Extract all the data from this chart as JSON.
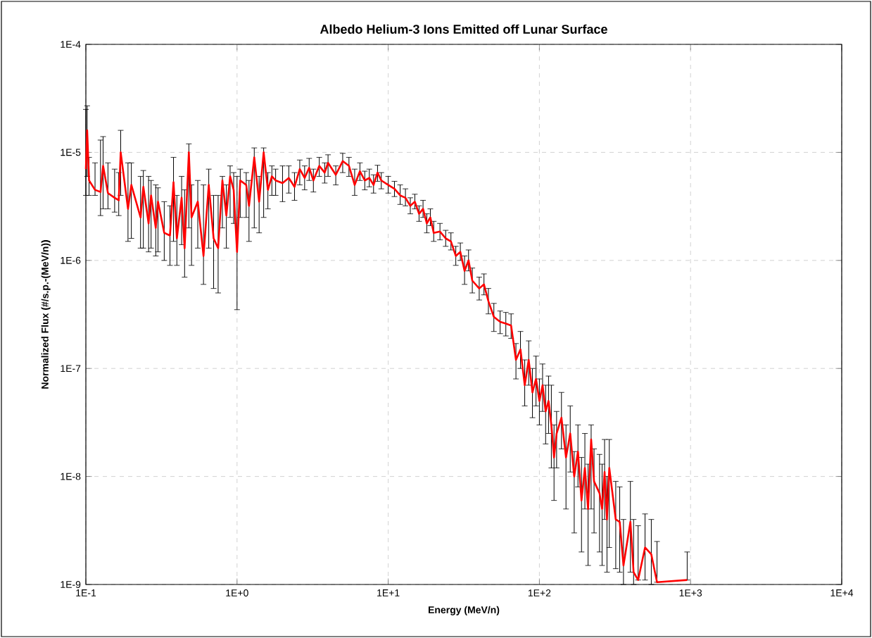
{
  "chart_data": {
    "type": "line",
    "title": "Albedo Helium-3 Ions Emitted off Lunar Surface",
    "xlabel": "Energy (MeV/n)",
    "ylabel": "Normalized Flux (#/s.p.-(MeV/n))",
    "log": "xy",
    "grid": true,
    "marker": "none",
    "line_style": "solid",
    "xlim": [
      0.1,
      10000
    ],
    "ylim": [
      1e-09,
      0.0001
    ],
    "xticks": [
      {
        "value": 0.1,
        "label": "1E-1"
      },
      {
        "value": 1,
        "label": "1E+0"
      },
      {
        "value": 10,
        "label": "1E+1"
      },
      {
        "value": 100,
        "label": "1E+2"
      },
      {
        "value": 1000,
        "label": "1E+3"
      },
      {
        "value": 10000,
        "label": "1E+4"
      }
    ],
    "yticks": [
      {
        "value": 1e-09,
        "label": "1E-9"
      },
      {
        "value": 1e-08,
        "label": "1E-8"
      },
      {
        "value": 1e-07,
        "label": "1E-7"
      },
      {
        "value": 1e-06,
        "label": "1E-6"
      },
      {
        "value": 1e-05,
        "label": "1E-5"
      },
      {
        "value": 0.0001,
        "label": "1E-4"
      }
    ],
    "x": [
      0.1,
      0.102,
      0.105,
      0.115,
      0.125,
      0.13,
      0.14,
      0.155,
      0.165,
      0.17,
      0.19,
      0.2,
      0.23,
      0.24,
      0.26,
      0.27,
      0.29,
      0.3,
      0.33,
      0.36,
      0.38,
      0.4,
      0.43,
      0.45,
      0.48,
      0.5,
      0.55,
      0.6,
      0.65,
      0.7,
      0.75,
      0.8,
      0.85,
      0.9,
      0.95,
      1.0,
      1.05,
      1.15,
      1.2,
      1.3,
      1.4,
      1.5,
      1.6,
      1.7,
      1.8,
      2.0,
      2.2,
      2.4,
      2.6,
      2.8,
      3.0,
      3.2,
      3.5,
      3.8,
      4.0,
      4.5,
      5.0,
      5.5,
      6.0,
      6.5,
      7.0,
      7.5,
      8.0,
      8.5,
      9.0,
      10,
      11,
      12,
      13,
      14,
      15,
      16,
      17,
      18,
      19,
      20,
      22,
      24,
      26,
      28,
      30,
      32,
      34,
      36,
      40,
      43,
      46,
      50,
      55,
      60,
      65,
      70,
      75,
      80,
      85,
      90,
      95,
      100,
      105,
      110,
      115,
      120,
      125,
      130,
      140,
      150,
      160,
      170,
      180,
      190,
      200,
      210,
      220,
      230,
      250,
      260,
      270,
      280,
      290,
      320,
      340,
      360,
      400,
      420,
      450,
      500,
      550,
      600,
      950
    ],
    "series": [
      {
        "color": "#ff0000",
        "values": [
          7e-06,
          1.6e-05,
          5.5e-06,
          4.5e-06,
          4.3e-06,
          7.5e-06,
          4.2e-06,
          3.8e-06,
          3.6e-06,
          1e-05,
          3e-06,
          5e-06,
          2.5e-06,
          4.8e-06,
          2.2e-06,
          4e-06,
          2e-06,
          3.5e-06,
          1.8e-06,
          1.7e-06,
          5.3e-06,
          1.6e-06,
          3.8e-06,
          1.3e-06,
          1e-05,
          2.5e-06,
          3.5e-06,
          1.1e-06,
          5e-06,
          1.6e-06,
          1.3e-06,
          5.5e-06,
          2.6e-06,
          6e-06,
          4.5e-06,
          1.2e-06,
          5.5e-06,
          5e-06,
          3.2e-06,
          9e-06,
          3.5e-06,
          1e-05,
          4.5e-06,
          6e-06,
          5.5e-06,
          5.2e-06,
          5.8e-06,
          4.8e-06,
          7e-06,
          5.8e-06,
          7.2e-06,
          5.5e-06,
          7.5e-06,
          6.5e-06,
          8e-06,
          6.2e-06,
          8.3e-06,
          7.5e-06,
          5e-06,
          6.7e-06,
          5.5e-06,
          5.8e-06,
          5e-06,
          6.5e-06,
          5.5e-06,
          5e-06,
          4.6e-06,
          4e-06,
          3.8e-06,
          3.2e-06,
          3.5e-06,
          2.7e-06,
          3e-06,
          2.2e-06,
          2.5e-06,
          1.8e-06,
          1.85e-06,
          1.6e-06,
          1.5e-06,
          1.1e-06,
          1.2e-06,
          8e-07,
          1e-06,
          6.5e-07,
          5.5e-07,
          6e-07,
          4.2e-07,
          3e-07,
          2.7e-07,
          2.6e-07,
          2.5e-07,
          1.2e-07,
          1.5e-07,
          7e-08,
          1.2e-07,
          6e-08,
          8e-08,
          5e-08,
          7e-08,
          4e-08,
          5e-08,
          3e-08,
          1.5e-08,
          2.5e-08,
          3.5e-08,
          1.5e-08,
          2.5e-08,
          1e-08,
          1.7e-08,
          6e-09,
          1.2e-08,
          5e-09,
          2.2e-08,
          9e-09,
          7e-09,
          5e-09,
          1.1e-08,
          4e-09,
          1.2e-08,
          4e-09,
          3.8e-09,
          1.5e-09,
          3.8e-09,
          1.3e-09,
          1.1e-09,
          2.2e-09,
          1.9e-09,
          1.05e-09,
          1.1e-09
        ],
        "errors": [
          [
            4e-06,
            2.5e-05
          ],
          [
            6e-06,
            2.7e-05
          ],
          [
            4e-06,
            9e-06
          ],
          [
            4e-06,
            8e-06
          ],
          [
            2.6e-06,
            1.3e-05
          ],
          [
            3e-06,
            1.4e-05
          ],
          [
            3e-06,
            8e-06
          ],
          [
            2.8e-06,
            7e-06
          ],
          [
            2.6e-06,
            6.5e-06
          ],
          [
            4e-06,
            1.6e-05
          ],
          [
            1.5e-06,
            8e-06
          ],
          [
            1.6e-06,
            8e-06
          ],
          [
            1.3e-06,
            6e-06
          ],
          [
            1.3e-06,
            6.8e-06
          ],
          [
            1.2e-06,
            6e-06
          ],
          [
            1.3e-06,
            5.5e-06
          ],
          [
            1.1e-06,
            5e-06
          ],
          [
            1.2e-06,
            4.7e-06
          ],
          [
            1e-06,
            3.5e-06
          ],
          [
            9e-07,
            3.2e-06
          ],
          [
            1.5e-06,
            9e-06
          ],
          [
            9e-07,
            4e-06
          ],
          [
            1.4e-06,
            6e-06
          ],
          [
            7e-07,
            4.5e-06
          ],
          [
            2e-06,
            1.2e-05
          ],
          [
            9e-07,
            5e-06
          ],
          [
            1.3e-06,
            5.5e-06
          ],
          [
            6e-07,
            5e-06
          ],
          [
            1.3e-06,
            7e-06
          ],
          [
            5.5e-07,
            4e-06
          ],
          [
            5e-07,
            4e-06
          ],
          [
            2e-06,
            6e-06
          ],
          [
            1.3e-06,
            5e-06
          ],
          [
            2.5e-06,
            7.5e-06
          ],
          [
            2.2e-06,
            6.5e-06
          ],
          [
            3.5e-07,
            6e-06
          ],
          [
            2.5e-06,
            7e-06
          ],
          [
            2.5e-06,
            6.5e-06
          ],
          [
            1.5e-06,
            5.5e-06
          ],
          [
            2e-06,
            1.1e-05
          ],
          [
            1.8e-06,
            6e-06
          ],
          [
            2.5e-06,
            1.1e-05
          ],
          [
            3e-06,
            6.5e-06
          ],
          [
            4e-06,
            7.5e-06
          ],
          [
            4e-06,
            7e-06
          ],
          [
            3.5e-06,
            7.5e-06
          ],
          [
            4.2e-06,
            7.5e-06
          ],
          [
            3.6e-06,
            6.5e-06
          ],
          [
            5e-06,
            8.5e-06
          ],
          [
            4.5e-06,
            7.5e-06
          ],
          [
            5.5e-06,
            8.8e-06
          ],
          [
            4.3e-06,
            7e-06
          ],
          [
            6e-06,
            9e-06
          ],
          [
            5.2e-06,
            8e-06
          ],
          [
            6e-06,
            9.5e-06
          ],
          [
            5e-06,
            7.5e-06
          ],
          [
            6.5e-06,
            9.8e-06
          ],
          [
            6e-06,
            9e-06
          ],
          [
            4e-06,
            7e-06
          ],
          [
            5.5e-06,
            8e-06
          ],
          [
            4.5e-06,
            6.7e-06
          ],
          [
            4.8e-06,
            7e-06
          ],
          [
            4.2e-06,
            6.2e-06
          ],
          [
            5.4e-06,
            7.6e-06
          ],
          [
            4.6e-06,
            6.5e-06
          ],
          [
            4.2e-06,
            6e-06
          ],
          [
            3.9e-06,
            5.4e-06
          ],
          [
            3.3e-06,
            5e-06
          ],
          [
            3.2e-06,
            4.6e-06
          ],
          [
            2.7e-06,
            3.8e-06
          ],
          [
            3e-06,
            4.1e-06
          ],
          [
            2.3e-06,
            3.2e-06
          ],
          [
            2.5e-06,
            3.6e-06
          ],
          [
            1.8e-06,
            2.7e-06
          ],
          [
            2.1e-06,
            3e-06
          ],
          [
            1.5e-06,
            2.3e-06
          ],
          [
            1.55e-06,
            2.2e-06
          ],
          [
            1.35e-06,
            1.9e-06
          ],
          [
            1.25e-06,
            1.8e-06
          ],
          [
            9e-07,
            1.35e-06
          ],
          [
            1e-06,
            1.45e-06
          ],
          [
            6e-07,
            1.1e-06
          ],
          [
            8e-07,
            1.25e-06
          ],
          [
            5e-07,
            8.5e-07
          ],
          [
            4.3e-07,
            7e-07
          ],
          [
            4.8e-07,
            7.5e-07
          ],
          [
            3.2e-07,
            5.5e-07
          ],
          [
            2.2e-07,
            4e-07
          ],
          [
            2.1e-07,
            3.4e-07
          ],
          [
            2e-07,
            3.3e-07
          ],
          [
            1.9e-07,
            3.2e-07
          ],
          [
            8e-08,
            1.7e-07
          ],
          [
            1e-07,
            2.2e-07
          ],
          [
            4.5e-08,
            1.2e-07
          ],
          [
            7e-08,
            1.8e-07
          ],
          [
            3.5e-08,
            1e-07
          ],
          [
            4.5e-08,
            1.3e-07
          ],
          [
            3e-08,
            8e-08
          ],
          [
            4e-08,
            1.1e-07
          ],
          [
            2e-08,
            7e-08
          ],
          [
            2.5e-08,
            8.5e-08
          ],
          [
            1.2e-08,
            7e-08
          ],
          [
            6e-09,
            3e-08
          ],
          [
            1.2e-08,
            4e-08
          ],
          [
            1.8e-08,
            6e-08
          ],
          [
            5e-09,
            3e-08
          ],
          [
            1.1e-08,
            4.5e-08
          ],
          [
            3e-09,
            1.7e-08
          ],
          [
            8e-09,
            3e-08
          ],
          [
            2e-09,
            1.5e-08
          ],
          [
            5e-09,
            2.5e-08
          ],
          [
            1.5e-09,
            1.3e-08
          ],
          [
            5e-09,
            3e-08
          ],
          [
            3e-09,
            1.8e-08
          ],
          [
            2e-09,
            1.6e-08
          ],
          [
            1.5e-09,
            1.3e-08
          ],
          [
            4e-09,
            2.2e-08
          ],
          [
            1.3e-09,
            1e-08
          ],
          [
            2.2e-09,
            2.2e-08
          ],
          [
            1.4e-09,
            9e-09
          ],
          [
            1.3e-09,
            8e-09
          ],
          [
            1e-09,
            4e-09
          ],
          [
            1.3e-09,
            9e-09
          ],
          [
            1e-09,
            4e-09
          ],
          [
            1.1e-09,
            3.5e-09
          ],
          [
            1.1e-09,
            4.5e-09
          ],
          [
            1e-09,
            4e-09
          ],
          [
            1.05e-09,
            2.5e-09
          ],
          [
            1.1e-09,
            2e-09
          ]
        ]
      }
    ]
  }
}
